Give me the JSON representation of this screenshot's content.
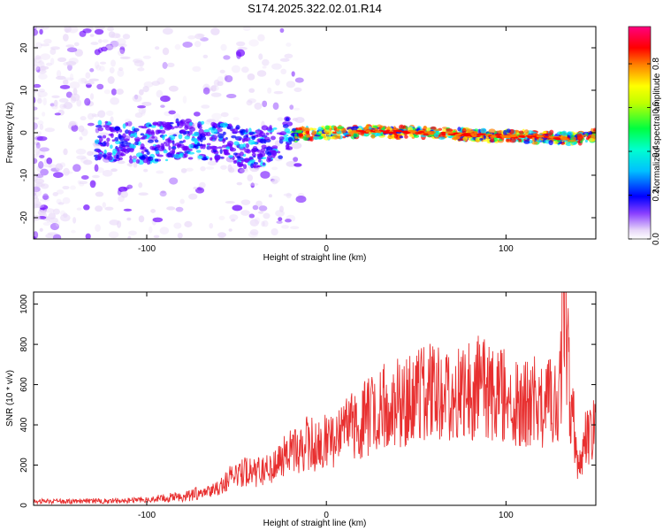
{
  "title": "S174.2025.322.02.01.R14",
  "chart_data": [
    {
      "type": "heatmap",
      "name": "spectrogram",
      "xlabel": "Height of straight line (km)",
      "ylabel": "Frequency (Hz)",
      "xlim": [
        -163,
        150
      ],
      "ylim": [
        -25,
        25
      ],
      "xticks": [
        -100,
        0,
        100
      ],
      "yticks": [
        -20,
        -10,
        0,
        10,
        20
      ],
      "colorbar": {
        "label": "Normalized spectral amplitude",
        "range": [
          0.0,
          0.97
        ],
        "ticks": [
          0.0,
          0.2,
          0.4,
          0.6,
          0.8
        ],
        "colors": [
          "#e8d8f8",
          "#6a00ff",
          "#0000ff",
          "#00e0ff",
          "#00ff40",
          "#ffff00",
          "#ff8000",
          "#ff0000",
          "#ff0080"
        ]
      },
      "ridge_frequency_hz": [
        {
          "x": -120,
          "y": -2.0
        },
        {
          "x": -100,
          "y": -2.5
        },
        {
          "x": -80,
          "y": -1.5
        },
        {
          "x": -60,
          "y": -2.0
        },
        {
          "x": -40,
          "y": -4.0
        },
        {
          "x": -30,
          "y": -2.0
        },
        {
          "x": -20,
          "y": -0.5
        },
        {
          "x": 0,
          "y": 0.0
        },
        {
          "x": 20,
          "y": 0.3
        },
        {
          "x": 40,
          "y": 0.2
        },
        {
          "x": 60,
          "y": 0.0
        },
        {
          "x": 80,
          "y": -0.5
        },
        {
          "x": 100,
          "y": -0.8
        },
        {
          "x": 120,
          "y": -1.0
        },
        {
          "x": 140,
          "y": -1.5
        },
        {
          "x": 150,
          "y": -0.5
        }
      ]
    },
    {
      "type": "line",
      "name": "snr",
      "xlabel": "Height of straight line (km)",
      "ylabel": "SNR (10 * v/v)",
      "xlim": [
        -163,
        150
      ],
      "ylim": [
        0,
        1060
      ],
      "xticks": [
        -100,
        0,
        100
      ],
      "yticks": [
        0,
        200,
        400,
        600,
        800,
        1000
      ],
      "color": "#e83030",
      "series": [
        {
          "name": "SNR",
          "x": [
            -163,
            -150,
            -140,
            -130,
            -120,
            -110,
            -100,
            -90,
            -80,
            -70,
            -60,
            -55,
            -50,
            -45,
            -40,
            -35,
            -30,
            -25,
            -20,
            -15,
            -10,
            -5,
            0,
            5,
            10,
            15,
            20,
            25,
            30,
            35,
            40,
            45,
            50,
            55,
            60,
            65,
            70,
            75,
            80,
            85,
            90,
            95,
            100,
            105,
            110,
            115,
            120,
            125,
            130,
            133,
            135,
            138,
            140,
            145,
            150
          ],
          "y": [
            20,
            20,
            20,
            22,
            22,
            25,
            28,
            35,
            45,
            60,
            90,
            130,
            150,
            170,
            160,
            180,
            200,
            240,
            260,
            280,
            310,
            300,
            320,
            330,
            360,
            390,
            420,
            450,
            480,
            500,
            520,
            510,
            540,
            560,
            550,
            560,
            570,
            580,
            560,
            590,
            570,
            560,
            540,
            520,
            510,
            520,
            500,
            520,
            560,
            1050,
            600,
            400,
            200,
            350,
            400
          ]
        }
      ]
    }
  ]
}
